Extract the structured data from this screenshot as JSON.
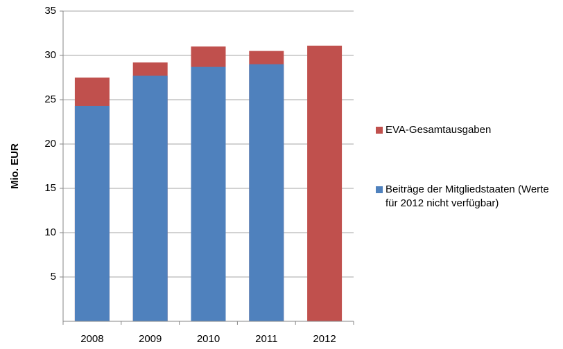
{
  "chart_data": {
    "type": "bar",
    "y_label": "Mio. EUR",
    "categories": [
      "2008",
      "2009",
      "2010",
      "2011",
      "2012"
    ],
    "series": [
      {
        "name": "EVA-Gesamtausgaben",
        "color": "#c0504d",
        "values": [
          27.5,
          29.2,
          31.0,
          30.5,
          31.1
        ]
      },
      {
        "name": "Beiträge der Mitgliedstaaten (Werte für 2012 nicht verfügbar)",
        "color": "#4f81bd",
        "values": [
          24.3,
          27.7,
          28.7,
          29.0,
          null
        ]
      }
    ],
    "ylim": [
      0,
      35
    ],
    "yticks": [
      5,
      10,
      15,
      20,
      25,
      30,
      35
    ],
    "grid": true,
    "legend": "right"
  }
}
